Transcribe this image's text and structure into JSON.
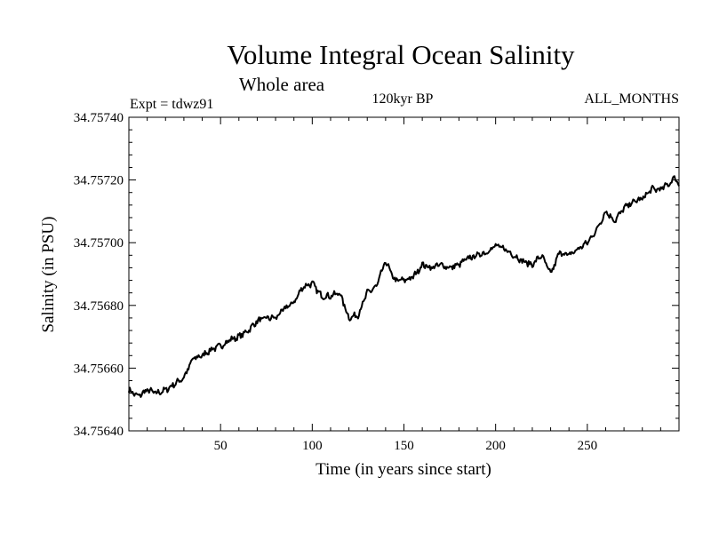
{
  "chart_data": {
    "type": "line",
    "title": "Volume Integral Ocean Salinity",
    "subtitle": "Whole area",
    "annotations": {
      "left": "Expt = tdwz91",
      "center": "120kyr BP",
      "right": "ALL_MONTHS"
    },
    "xlabel": "Time (in years since start)",
    "ylabel": "Salinity (in PSU)",
    "xlim": [
      0,
      300
    ],
    "ylim": [
      34.7564,
      34.7574
    ],
    "xticks": [
      50,
      100,
      150,
      200,
      250
    ],
    "xtick_labels": [
      "50",
      "100",
      "150",
      "200",
      "250"
    ],
    "yticks": [
      34.7564,
      34.7566,
      34.7568,
      34.757,
      34.7572,
      34.7574
    ],
    "ytick_labels": [
      "34.75640",
      "34.75660",
      "34.75680",
      "34.75700",
      "34.75720",
      "34.75740"
    ],
    "grid": false,
    "series": [
      {
        "name": "Salinity",
        "x": [
          0,
          5,
          10,
          15,
          20,
          25,
          30,
          35,
          40,
          45,
          50,
          55,
          60,
          65,
          70,
          75,
          80,
          85,
          90,
          95,
          100,
          105,
          110,
          115,
          120,
          125,
          130,
          135,
          140,
          145,
          150,
          155,
          160,
          165,
          170,
          175,
          180,
          185,
          190,
          195,
          200,
          205,
          210,
          215,
          220,
          225,
          230,
          235,
          240,
          245,
          250,
          255,
          260,
          265,
          270,
          275,
          280,
          285,
          290,
          295,
          298,
          300
        ],
        "values": [
          34.75653,
          34.75651,
          34.75653,
          34.75652,
          34.75653,
          34.75655,
          34.75657,
          34.75663,
          34.75664,
          34.75666,
          34.75667,
          34.75669,
          34.7567,
          34.75672,
          34.75675,
          34.75676,
          34.75676,
          34.75679,
          34.75681,
          34.75686,
          34.75687,
          34.75683,
          34.75683,
          34.75684,
          34.75676,
          34.75677,
          34.75684,
          34.75686,
          34.75694,
          34.75688,
          34.75688,
          34.75689,
          34.75693,
          34.75692,
          34.75693,
          34.75692,
          34.75693,
          34.75695,
          34.75696,
          34.75697,
          34.75699,
          34.75698,
          34.75696,
          34.75694,
          34.75693,
          34.75696,
          34.7569,
          34.75697,
          34.75696,
          34.75698,
          34.757,
          34.75704,
          34.7571,
          34.75707,
          34.75711,
          34.75713,
          34.75714,
          34.75717,
          34.75717,
          34.75719,
          34.75721,
          34.75718
        ]
      }
    ]
  }
}
